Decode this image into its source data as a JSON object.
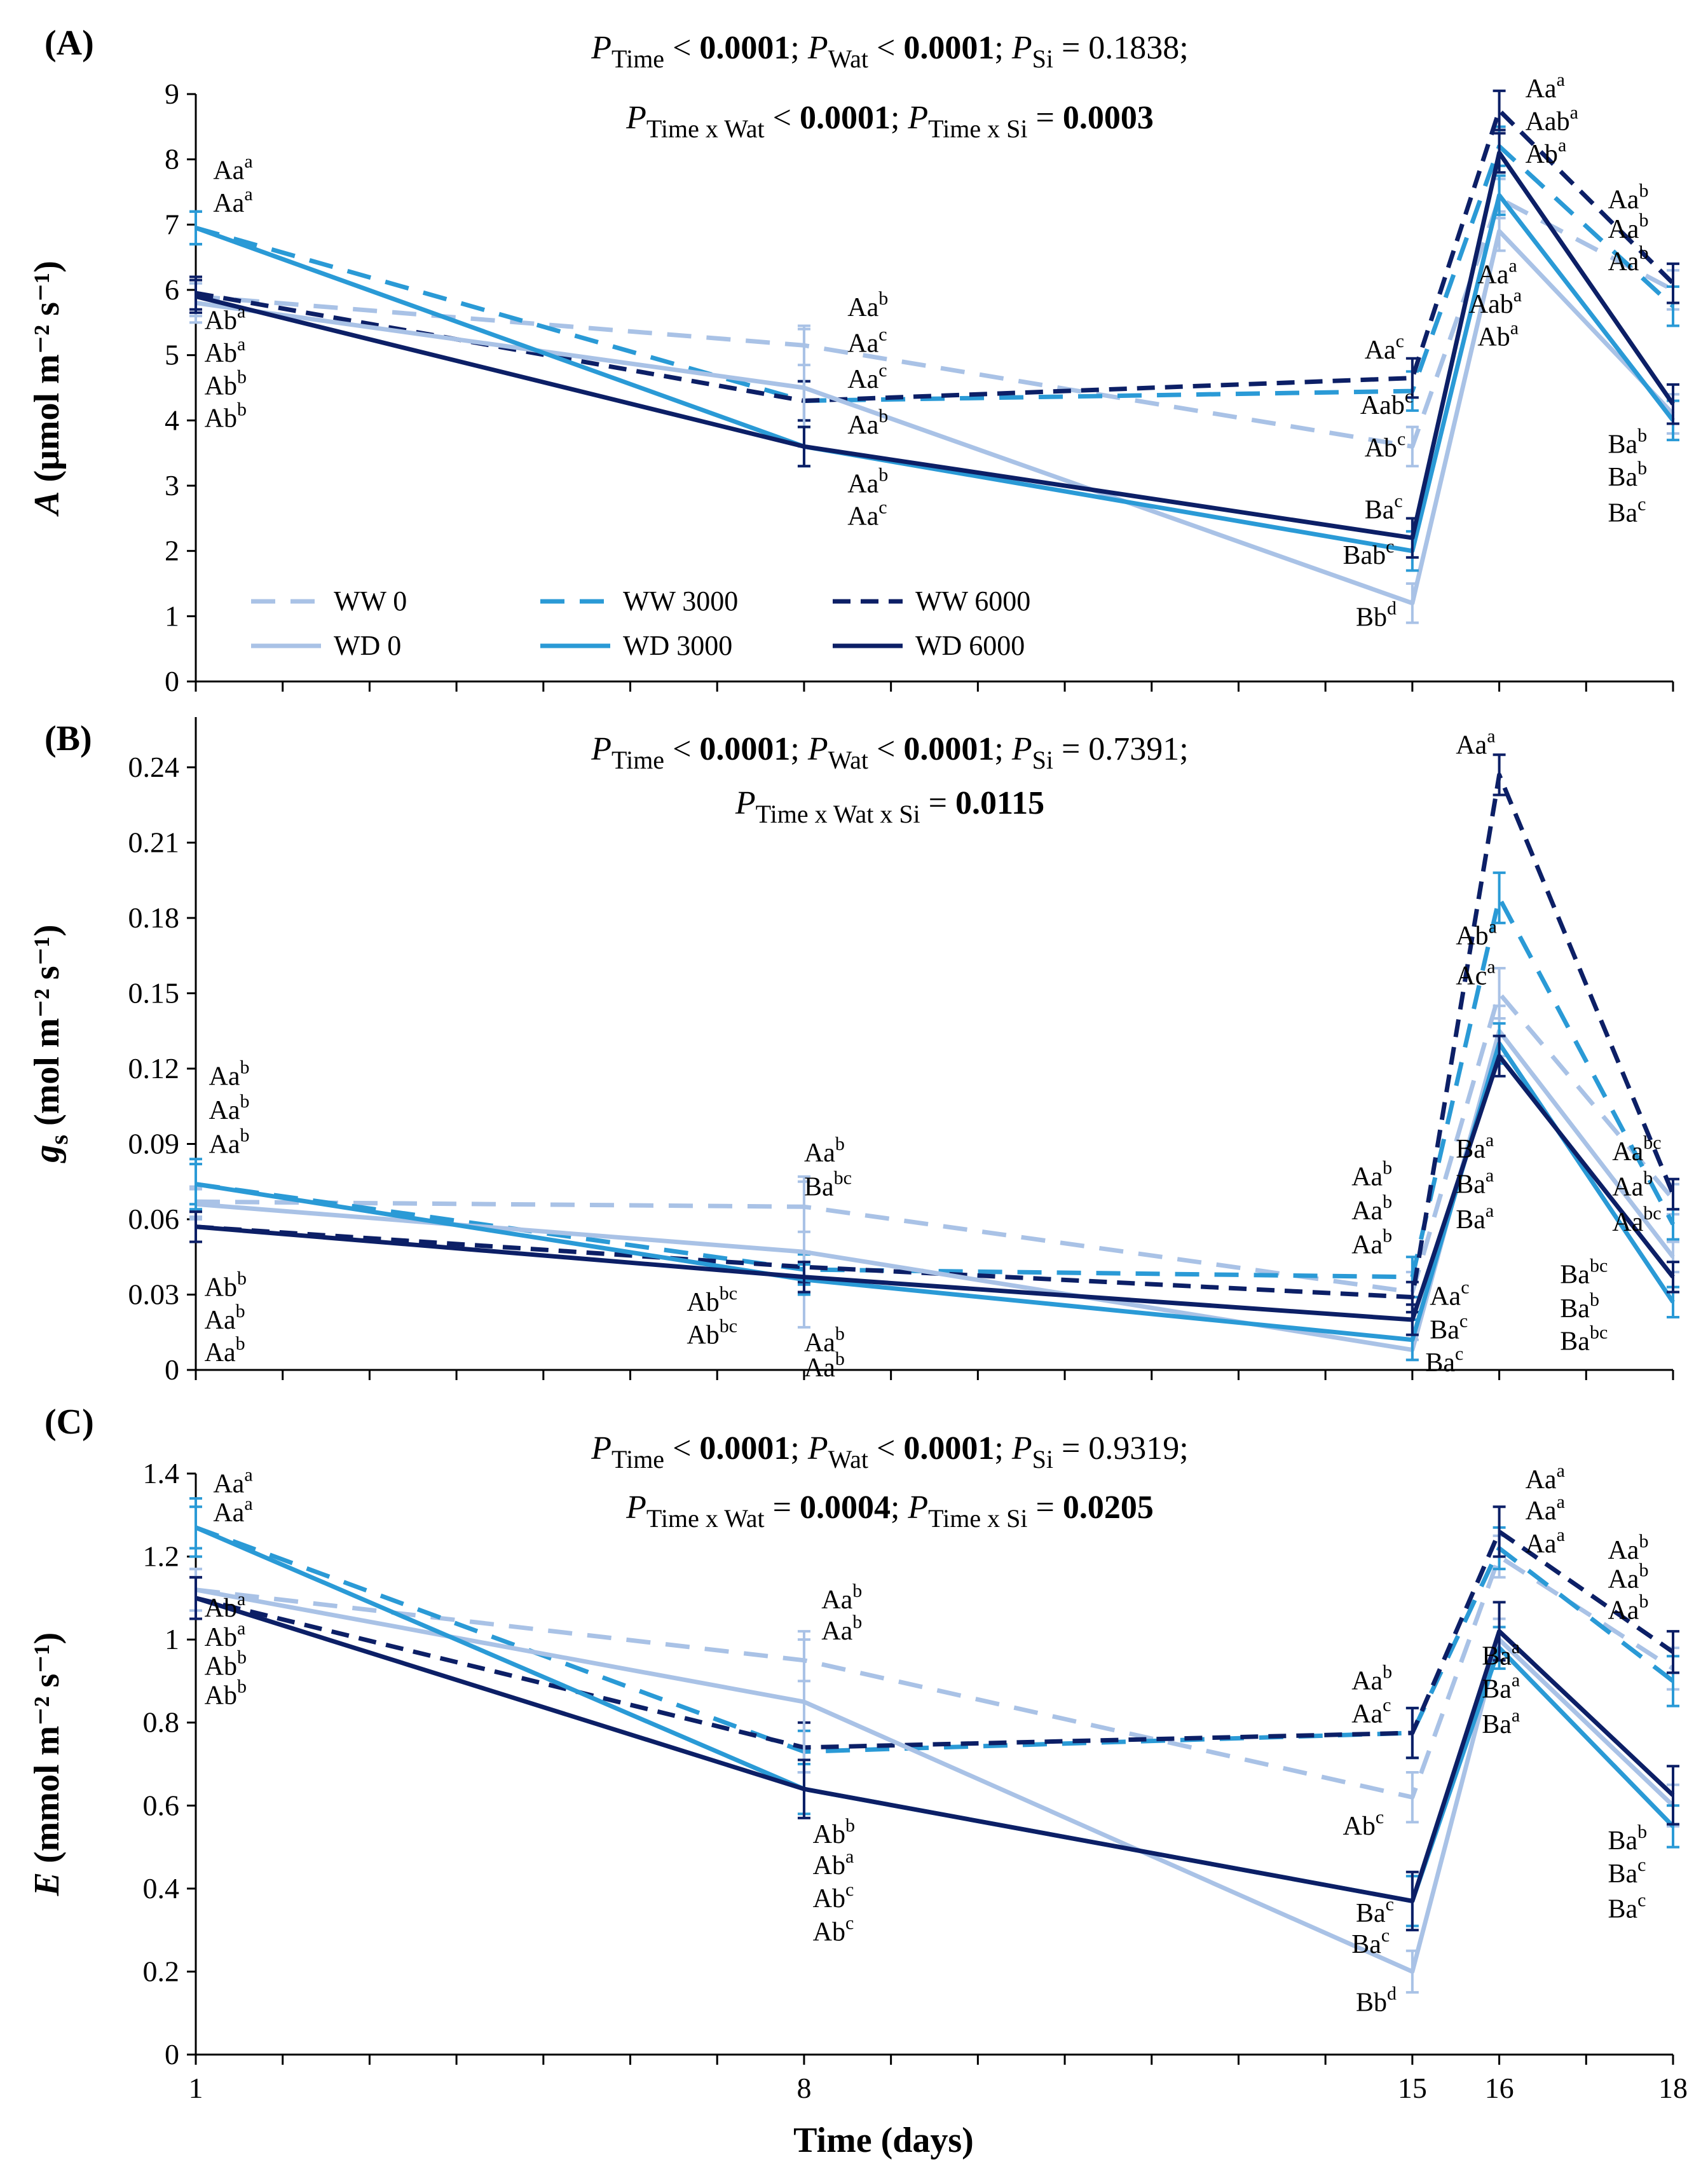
{
  "figure": {
    "xlabel": "Time (days)",
    "x_ticks": [
      "1",
      "8",
      "15",
      "16",
      "18"
    ]
  },
  "legend": {
    "entries": [
      "WW 0",
      "WW 3000",
      "WW 6000",
      "WD 0",
      "WD 3000",
      "WD 6000"
    ]
  },
  "colors": {
    "light": "#a9c2e6",
    "mid": "#2a9ad6",
    "dark": "#0c1f66"
  },
  "chart_data": [
    {
      "type": "line",
      "panel": "(A)",
      "ylabel_italic": "A",
      "ylabel_rest": " (μmol m⁻² s⁻¹)",
      "x": [
        1,
        8,
        15,
        16,
        18
      ],
      "ylim": [
        0,
        9
      ],
      "y_ticks": [
        0,
        1,
        2,
        3,
        4,
        5,
        6,
        7,
        8,
        9
      ],
      "y_tick_labels": [
        "0",
        "1",
        "2",
        "3",
        "4",
        "5",
        "6",
        "7",
        "8",
        "9"
      ],
      "stats_line1": "P_Time < 0.0001; P_Wat < 0.0001; P_Si = 0.1838;",
      "stats_line2": "P_Time x Wat < 0.0001; P_Time x Si = 0.0003",
      "series": [
        {
          "name": "WW 0",
          "values": [
            5.9,
            5.15,
            3.6,
            7.4,
            6.0
          ],
          "err": [
            0.3,
            0.3,
            0.3,
            0.3,
            0.3
          ]
        },
        {
          "name": "WW 3000",
          "values": [
            6.95,
            4.3,
            4.45,
            8.2,
            5.75
          ],
          "err": [
            0.25,
            0.3,
            0.3,
            0.3,
            0.3
          ]
        },
        {
          "name": "WW 6000",
          "values": [
            5.95,
            4.3,
            4.65,
            8.75,
            6.1
          ],
          "err": [
            0.25,
            0.3,
            0.3,
            0.3,
            0.3
          ]
        },
        {
          "name": "WD 0",
          "values": [
            5.8,
            4.5,
            1.2,
            6.9,
            4.1
          ],
          "err": [
            0.3,
            0.9,
            0.3,
            0.3,
            0.3
          ]
        },
        {
          "name": "WD 3000",
          "values": [
            6.95,
            3.6,
            2.0,
            7.45,
            4.0
          ],
          "err": [
            0.25,
            0.3,
            0.3,
            0.3,
            0.3
          ]
        },
        {
          "name": "WD 6000",
          "values": [
            5.9,
            3.6,
            2.2,
            8.1,
            4.25
          ],
          "err": [
            0.25,
            0.3,
            0.3,
            0.3,
            0.3
          ]
        }
      ],
      "annotations": [
        {
          "base": "Aa",
          "sup": "a",
          "x": 1.2,
          "y": 7.7
        },
        {
          "base": "Aa",
          "sup": "a",
          "x": 1.2,
          "y": 7.2
        },
        {
          "base": "Ab",
          "sup": "a",
          "x": 1.1,
          "y": 5.4
        },
        {
          "base": "Ab",
          "sup": "a",
          "x": 1.1,
          "y": 4.9
        },
        {
          "base": "Ab",
          "sup": "b",
          "x": 1.1,
          "y": 4.4
        },
        {
          "base": "Ab",
          "sup": "b",
          "x": 1.1,
          "y": 3.9
        },
        {
          "base": "Aa",
          "sup": "b",
          "x": 8.5,
          "y": 5.6
        },
        {
          "base": "Aa",
          "sup": "c",
          "x": 8.5,
          "y": 5.05
        },
        {
          "base": "Aa",
          "sup": "c",
          "x": 8.5,
          "y": 4.5
        },
        {
          "base": "Aa",
          "sup": "b",
          "x": 8.5,
          "y": 3.8
        },
        {
          "base": "Aa",
          "sup": "b",
          "x": 8.5,
          "y": 2.9
        },
        {
          "base": "Aa",
          "sup": "c",
          "x": 8.5,
          "y": 2.4
        },
        {
          "base": "Aa",
          "sup": "c",
          "x": 14.45,
          "y": 4.95
        },
        {
          "base": "Aab",
          "sup": "c",
          "x": 14.4,
          "y": 4.1
        },
        {
          "base": "Ab",
          "sup": "c",
          "x": 14.45,
          "y": 3.45
        },
        {
          "base": "Ba",
          "sup": "c",
          "x": 14.45,
          "y": 2.5
        },
        {
          "base": "Bab",
          "sup": "c",
          "x": 14.2,
          "y": 1.8
        },
        {
          "base": "Bb",
          "sup": "d",
          "x": 14.35,
          "y": 0.85
        },
        {
          "base": "Aa",
          "sup": "a",
          "x": 16.3,
          "y": 8.95
        },
        {
          "base": "Aab",
          "sup": "a",
          "x": 16.3,
          "y": 8.45
        },
        {
          "base": "Ab",
          "sup": "a",
          "x": 16.3,
          "y": 7.95
        },
        {
          "base": "Aa",
          "sup": "a",
          "x": 15.75,
          "y": 6.1
        },
        {
          "base": "Aab",
          "sup": "a",
          "x": 15.65,
          "y": 5.65
        },
        {
          "base": "Ab",
          "sup": "a",
          "x": 15.75,
          "y": 5.15
        },
        {
          "base": "Aa",
          "sup": "b",
          "x": 17.25,
          "y": 7.25
        },
        {
          "base": "Aa",
          "sup": "b",
          "x": 17.25,
          "y": 6.8
        },
        {
          "base": "Aa",
          "sup": "b",
          "x": 17.25,
          "y": 6.3
        },
        {
          "base": "Ba",
          "sup": "b",
          "x": 17.25,
          "y": 3.5
        },
        {
          "base": "Ba",
          "sup": "b",
          "x": 17.25,
          "y": 3.0
        },
        {
          "base": "Ba",
          "sup": "c",
          "x": 17.25,
          "y": 2.45
        }
      ]
    },
    {
      "type": "line",
      "panel": "(B)",
      "ylabel_italic": "g",
      "ylabel_sub": "s",
      "ylabel_rest": " (mol m⁻² s⁻¹)",
      "x": [
        1,
        8,
        15,
        16,
        18
      ],
      "ylim": [
        0,
        0.26
      ],
      "y_ticks": [
        0,
        0.03,
        0.06,
        0.09,
        0.12,
        0.15,
        0.18,
        0.21,
        0.24
      ],
      "y_tick_labels": [
        "0",
        "0.03",
        "0.06",
        "0.09",
        "0.12",
        "0.15",
        "0.18",
        "0.21",
        "0.24"
      ],
      "stats_line1": "P_Time < 0.0001; P_Wat < 0.0001; P_Si = 0.7391;",
      "stats_line2": "P_Time x Wat x Si = 0.0115",
      "series": [
        {
          "name": "WW 0",
          "values": [
            0.067,
            0.065,
            0.031,
            0.15,
            0.068
          ],
          "err": [
            0.006,
            0.01,
            0.008,
            0.01,
            0.006
          ]
        },
        {
          "name": "WW 3000",
          "values": [
            0.074,
            0.04,
            0.037,
            0.188,
            0.058
          ],
          "err": [
            0.008,
            0.006,
            0.008,
            0.01,
            0.006
          ]
        },
        {
          "name": "WW 6000",
          "values": [
            0.057,
            0.041,
            0.029,
            0.237,
            0.07
          ],
          "err": [
            0.006,
            0.006,
            0.006,
            0.008,
            0.006
          ]
        },
        {
          "name": "WD 0",
          "values": [
            0.066,
            0.047,
            0.008,
            0.135,
            0.045
          ],
          "err": [
            0.006,
            0.03,
            0.004,
            0.01,
            0.006
          ]
        },
        {
          "name": "WD 3000",
          "values": [
            0.074,
            0.036,
            0.012,
            0.13,
            0.027
          ],
          "err": [
            0.01,
            0.006,
            0.008,
            0.008,
            0.006
          ]
        },
        {
          "name": "WD 6000",
          "values": [
            0.057,
            0.037,
            0.02,
            0.125,
            0.037
          ],
          "err": [
            0.006,
            0.006,
            0.006,
            0.008,
            0.006
          ]
        }
      ],
      "annotations": [
        {
          "base": "Aa",
          "sup": "b",
          "x": 1.15,
          "y": 0.1135
        },
        {
          "base": "Aa",
          "sup": "b",
          "x": 1.15,
          "y": 0.1
        },
        {
          "base": "Aa",
          "sup": "b",
          "x": 1.15,
          "y": 0.0865
        },
        {
          "base": "Ab",
          "sup": "b",
          "x": 1.1,
          "y": 0.0295
        },
        {
          "base": "Aa",
          "sup": "b",
          "x": 1.1,
          "y": 0.0165
        },
        {
          "base": "Aa",
          "sup": "b",
          "x": 1.1,
          "y": 0.0035
        },
        {
          "base": "Aa",
          "sup": "b",
          "x": 8.0,
          "y": 0.083
        },
        {
          "base": "Ba",
          "sup": "bc",
          "x": 8.0,
          "y": 0.0695
        },
        {
          "base": "Ab",
          "sup": "bc",
          "x": 6.65,
          "y": 0.0235
        },
        {
          "base": "Ab",
          "sup": "bc",
          "x": 6.65,
          "y": 0.0105
        },
        {
          "base": "Aa",
          "sup": "b",
          "x": 8.0,
          "y": 0.0075
        },
        {
          "base": "Aa",
          "sup": "b",
          "x": 8.0,
          "y": -0.0025
        },
        {
          "base": "Aa",
          "sup": "b",
          "x": 14.3,
          "y": 0.0735
        },
        {
          "base": "Aa",
          "sup": "b",
          "x": 14.3,
          "y": 0.06
        },
        {
          "base": "Aa",
          "sup": "b",
          "x": 14.3,
          "y": 0.0465
        },
        {
          "base": "Aa",
          "sup": "c",
          "x": 15.2,
          "y": 0.026
        },
        {
          "base": "Ba",
          "sup": "c",
          "x": 15.2,
          "y": 0.0125
        },
        {
          "base": "Ba",
          "sup": "c",
          "x": 15.15,
          "y": -0.0005
        },
        {
          "base": "Aa",
          "sup": "a",
          "x": 15.5,
          "y": 0.2455
        },
        {
          "base": "Ab",
          "sup": "a",
          "x": 15.5,
          "y": 0.1695
        },
        {
          "base": "Ac",
          "sup": "a",
          "x": 15.5,
          "y": 0.1535
        },
        {
          "base": "Ba",
          "sup": "a",
          "x": 15.5,
          "y": 0.0845
        },
        {
          "base": "Ba",
          "sup": "a",
          "x": 15.5,
          "y": 0.0705
        },
        {
          "base": "Ba",
          "sup": "a",
          "x": 15.5,
          "y": 0.0565
        },
        {
          "base": "Aa",
          "sup": "bc",
          "x": 17.3,
          "y": 0.0835
        },
        {
          "base": "Aa",
          "sup": "b",
          "x": 17.3,
          "y": 0.0695
        },
        {
          "base": "Aa",
          "sup": "bc",
          "x": 17.3,
          "y": 0.0555
        },
        {
          "base": "Ba",
          "sup": "bc",
          "x": 16.7,
          "y": 0.0345
        },
        {
          "base": "Ba",
          "sup": "b",
          "x": 16.7,
          "y": 0.021
        },
        {
          "base": "Ba",
          "sup": "bc",
          "x": 16.7,
          "y": 0.008
        }
      ]
    },
    {
      "type": "line",
      "panel": "(C)",
      "ylabel_italic": "E",
      "ylabel_rest": " (mmol m⁻² s⁻¹)",
      "x": [
        1,
        8,
        15,
        16,
        18
      ],
      "ylim": [
        0,
        1.4
      ],
      "y_ticks": [
        0,
        0.2,
        0.4,
        0.6,
        0.8,
        1.0,
        1.2,
        1.4
      ],
      "y_tick_labels": [
        "0",
        "0.2",
        "0.4",
        "0.6",
        "0.8",
        "1",
        "1.2",
        "1.4"
      ],
      "stats_line1": "P_Time < 0.0001; P_Wat < 0.0001; P_Si = 0.9319;",
      "stats_line2": "P_Time x Wat = 0.0004; P_Time x Si = 0.0205",
      "series": [
        {
          "name": "WW 0",
          "values": [
            1.12,
            0.95,
            0.62,
            1.2,
            0.93
          ],
          "err": [
            0.05,
            0.05,
            0.06,
            0.05,
            0.05
          ]
        },
        {
          "name": "WW 3000",
          "values": [
            1.27,
            0.73,
            0.775,
            1.22,
            0.9
          ],
          "err": [
            0.05,
            0.05,
            0.06,
            0.05,
            0.06
          ]
        },
        {
          "name": "WW 6000",
          "values": [
            1.1,
            0.74,
            0.775,
            1.26,
            0.97
          ],
          "err": [
            0.05,
            0.06,
            0.06,
            0.06,
            0.05
          ]
        },
        {
          "name": "WD 0",
          "values": [
            1.12,
            0.85,
            0.2,
            1.0,
            0.6
          ],
          "err": [
            0.05,
            0.17,
            0.05,
            0.05,
            0.05
          ]
        },
        {
          "name": "WD 3000",
          "values": [
            1.27,
            0.64,
            0.37,
            0.98,
            0.55
          ],
          "err": [
            0.07,
            0.06,
            0.06,
            0.05,
            0.05
          ]
        },
        {
          "name": "WD 6000",
          "values": [
            1.1,
            0.64,
            0.37,
            1.02,
            0.625
          ],
          "err": [
            0.05,
            0.07,
            0.07,
            0.07,
            0.07
          ]
        }
      ],
      "annotations": [
        {
          "base": "Aa",
          "sup": "a",
          "x": 1.2,
          "y": 1.355
        },
        {
          "base": "Aa",
          "sup": "a",
          "x": 1.2,
          "y": 1.285
        },
        {
          "base": "Ab",
          "sup": "a",
          "x": 1.1,
          "y": 1.055
        },
        {
          "base": "Ab",
          "sup": "a",
          "x": 1.1,
          "y": 0.985
        },
        {
          "base": "Ab",
          "sup": "b",
          "x": 1.1,
          "y": 0.915
        },
        {
          "base": "Ab",
          "sup": "b",
          "x": 1.1,
          "y": 0.845
        },
        {
          "base": "Aa",
          "sup": "b",
          "x": 8.2,
          "y": 1.075
        },
        {
          "base": "Aa",
          "sup": "b",
          "x": 8.2,
          "y": 1.0
        },
        {
          "base": "Ab",
          "sup": "b",
          "x": 8.1,
          "y": 0.51
        },
        {
          "base": "Ab",
          "sup": "a",
          "x": 8.1,
          "y": 0.435
        },
        {
          "base": "Ab",
          "sup": "c",
          "x": 8.1,
          "y": 0.355
        },
        {
          "base": "Ab",
          "sup": "c",
          "x": 8.1,
          "y": 0.275
        },
        {
          "base": "Aa",
          "sup": "b",
          "x": 14.3,
          "y": 0.88
        },
        {
          "base": "Aa",
          "sup": "c",
          "x": 14.3,
          "y": 0.8
        },
        {
          "base": "Ab",
          "sup": "c",
          "x": 14.2,
          "y": 0.53
        },
        {
          "base": "Ba",
          "sup": "c",
          "x": 14.35,
          "y": 0.32
        },
        {
          "base": "Ba",
          "sup": "c",
          "x": 14.3,
          "y": 0.245
        },
        {
          "base": "Bb",
          "sup": "d",
          "x": 14.35,
          "y": 0.105
        },
        {
          "base": "Aa",
          "sup": "a",
          "x": 16.3,
          "y": 1.365
        },
        {
          "base": "Aa",
          "sup": "a",
          "x": 16.3,
          "y": 1.29
        },
        {
          "base": "Aa",
          "sup": "a",
          "x": 16.3,
          "y": 1.21
        },
        {
          "base": "Ba",
          "sup": "a",
          "x": 15.8,
          "y": 0.94
        },
        {
          "base": "Ba",
          "sup": "a",
          "x": 15.8,
          "y": 0.86
        },
        {
          "base": "Ba",
          "sup": "a",
          "x": 15.8,
          "y": 0.775
        },
        {
          "base": "Aa",
          "sup": "b",
          "x": 17.25,
          "y": 1.195
        },
        {
          "base": "Aa",
          "sup": "b",
          "x": 17.25,
          "y": 1.125
        },
        {
          "base": "Aa",
          "sup": "b",
          "x": 17.25,
          "y": 1.05
        },
        {
          "base": "Ba",
          "sup": "b",
          "x": 17.25,
          "y": 0.495
        },
        {
          "base": "Ba",
          "sup": "c",
          "x": 17.25,
          "y": 0.415
        },
        {
          "base": "Ba",
          "sup": "c",
          "x": 17.25,
          "y": 0.33
        }
      ]
    }
  ]
}
